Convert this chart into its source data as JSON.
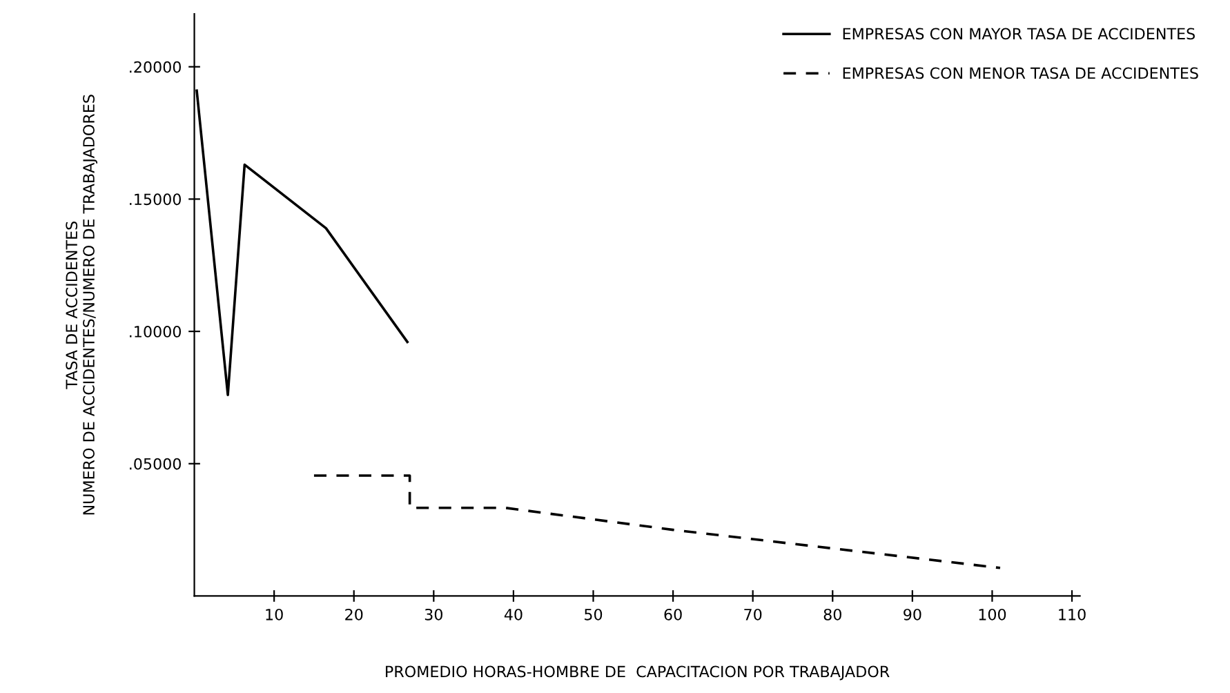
{
  "chart_data": {
    "type": "line",
    "xlabel": "PROMEDIO HORAS-HOMBRE DE  CAPACITACION POR TRABAJADOR",
    "ylabel": "TASA DE ACCIDENTES\nNUMERO DE ACCIDENTES/NUMERO DE TRABAJADORES",
    "series": [
      {
        "name": "EMPRESAS CON MAYOR TASA DE ACCIDENTES",
        "color": "#000000",
        "line_style": "solid",
        "x": [
          0.3,
          4.2,
          6.3,
          16.5,
          26.7
        ],
        "values": [
          0.191,
          0.076,
          0.163,
          0.139,
          0.096
        ]
      },
      {
        "name": "EMPRESAS CON MENOR TASA DE ACCIDENTES",
        "color": "#000000",
        "line_style": "dashed",
        "x": [
          15,
          27,
          27,
          39,
          60,
          101
        ],
        "values": [
          0.0455,
          0.0455,
          0.0333,
          0.0333,
          0.025,
          0.0106
        ]
      }
    ],
    "xlim": [
      0,
      111
    ],
    "ylim": [
      0,
      0.22
    ],
    "xticks": [
      10,
      20,
      30,
      40,
      50,
      60,
      70,
      80,
      90,
      100,
      110
    ],
    "yticks": [
      {
        "value": 0.05,
        "label": ".05000"
      },
      {
        "value": 0.1,
        "label": ".10000"
      },
      {
        "value": 0.15,
        "label": ".15000"
      },
      {
        "value": 0.2,
        "label": ".20000"
      }
    ],
    "grid": false,
    "legend": "top right",
    "marker": "none"
  }
}
